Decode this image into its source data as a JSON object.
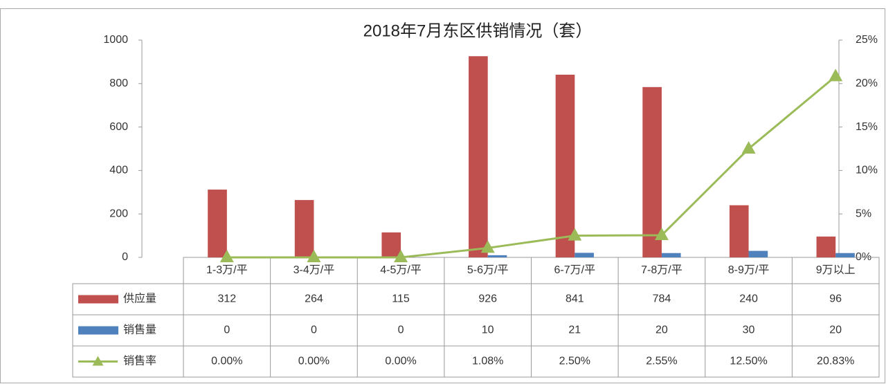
{
  "chart_data": {
    "type": "bar-line",
    "title": "2018年7月东区供销情况（套）",
    "categories": [
      "1-3万/平",
      "3-4万/平",
      "4-5万/平",
      "5-6万/平",
      "6-7万/平",
      "7-8万/平",
      "8-9万/平",
      "9万以上"
    ],
    "series": [
      {
        "name": "供应量",
        "color": "#c0504d",
        "values": [
          312,
          264,
          115,
          926,
          841,
          784,
          240,
          96
        ]
      },
      {
        "name": "销售量",
        "color": "#4f81bd",
        "values": [
          0,
          0,
          0,
          10,
          21,
          20,
          30,
          20
        ]
      },
      {
        "name": "销售率",
        "color": "#9bbb59",
        "axis": "y2",
        "values": [
          0,
          0,
          0,
          1.08,
          2.5,
          2.55,
          12.5,
          20.83
        ],
        "value_labels": [
          "0.00%",
          "0.00%",
          "0.00%",
          "1.08%",
          "2.50%",
          "2.55%",
          "12.50%",
          "20.83%"
        ]
      }
    ],
    "ylim": [
      0,
      1000
    ],
    "yticks": [
      0,
      200,
      400,
      600,
      800,
      1000
    ],
    "y2lim": [
      0,
      25
    ],
    "y2ticks": [
      {
        "value": 0,
        "label": "0%"
      },
      {
        "value": 5,
        "label": "5%"
      },
      {
        "value": 10,
        "label": "10%"
      },
      {
        "value": 15,
        "label": "15%"
      },
      {
        "value": 20,
        "label": "20%"
      },
      {
        "value": 25,
        "label": "25%"
      }
    ],
    "grid": false
  }
}
